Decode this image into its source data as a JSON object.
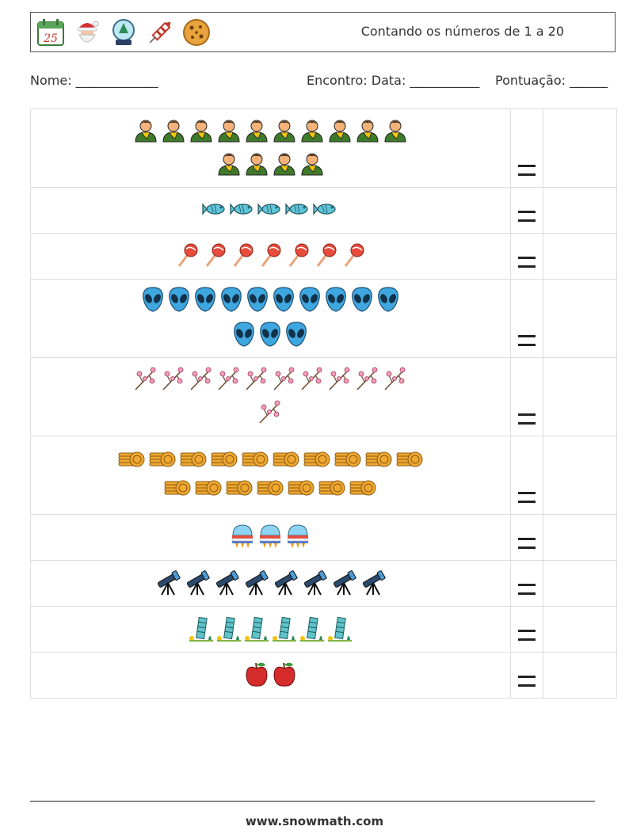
{
  "header": {
    "icons": [
      "calendar-icon",
      "santa-icon",
      "snow-globe-icon",
      "firework-rocket-icon",
      "cookie-icon"
    ],
    "calendar_day": "25",
    "title": "Contando os números de 1 a 20"
  },
  "info": {
    "name_label": "Nome: _____________",
    "encounter_label": "Encontro: Data: ___________",
    "score_label": "Pontuação: ______"
  },
  "rows": [
    {
      "icon": "person-scarf-icon",
      "count": 14
    },
    {
      "icon": "fish-icon",
      "count": 5
    },
    {
      "icon": "lollipop-icon",
      "count": 7
    },
    {
      "icon": "alien-icon",
      "count": 13
    },
    {
      "icon": "cherry-blossom-branch-icon",
      "count": 11
    },
    {
      "icon": "coin-stack-icon",
      "count": 17
    },
    {
      "icon": "spaceship-icon",
      "count": 3
    },
    {
      "icon": "telescope-icon",
      "count": 8
    },
    {
      "icon": "leaning-tower-icon",
      "count": 6
    },
    {
      "icon": "apple-icon",
      "count": 2
    }
  ],
  "equals_symbol": "=",
  "footer": "www.snowmath.com"
}
